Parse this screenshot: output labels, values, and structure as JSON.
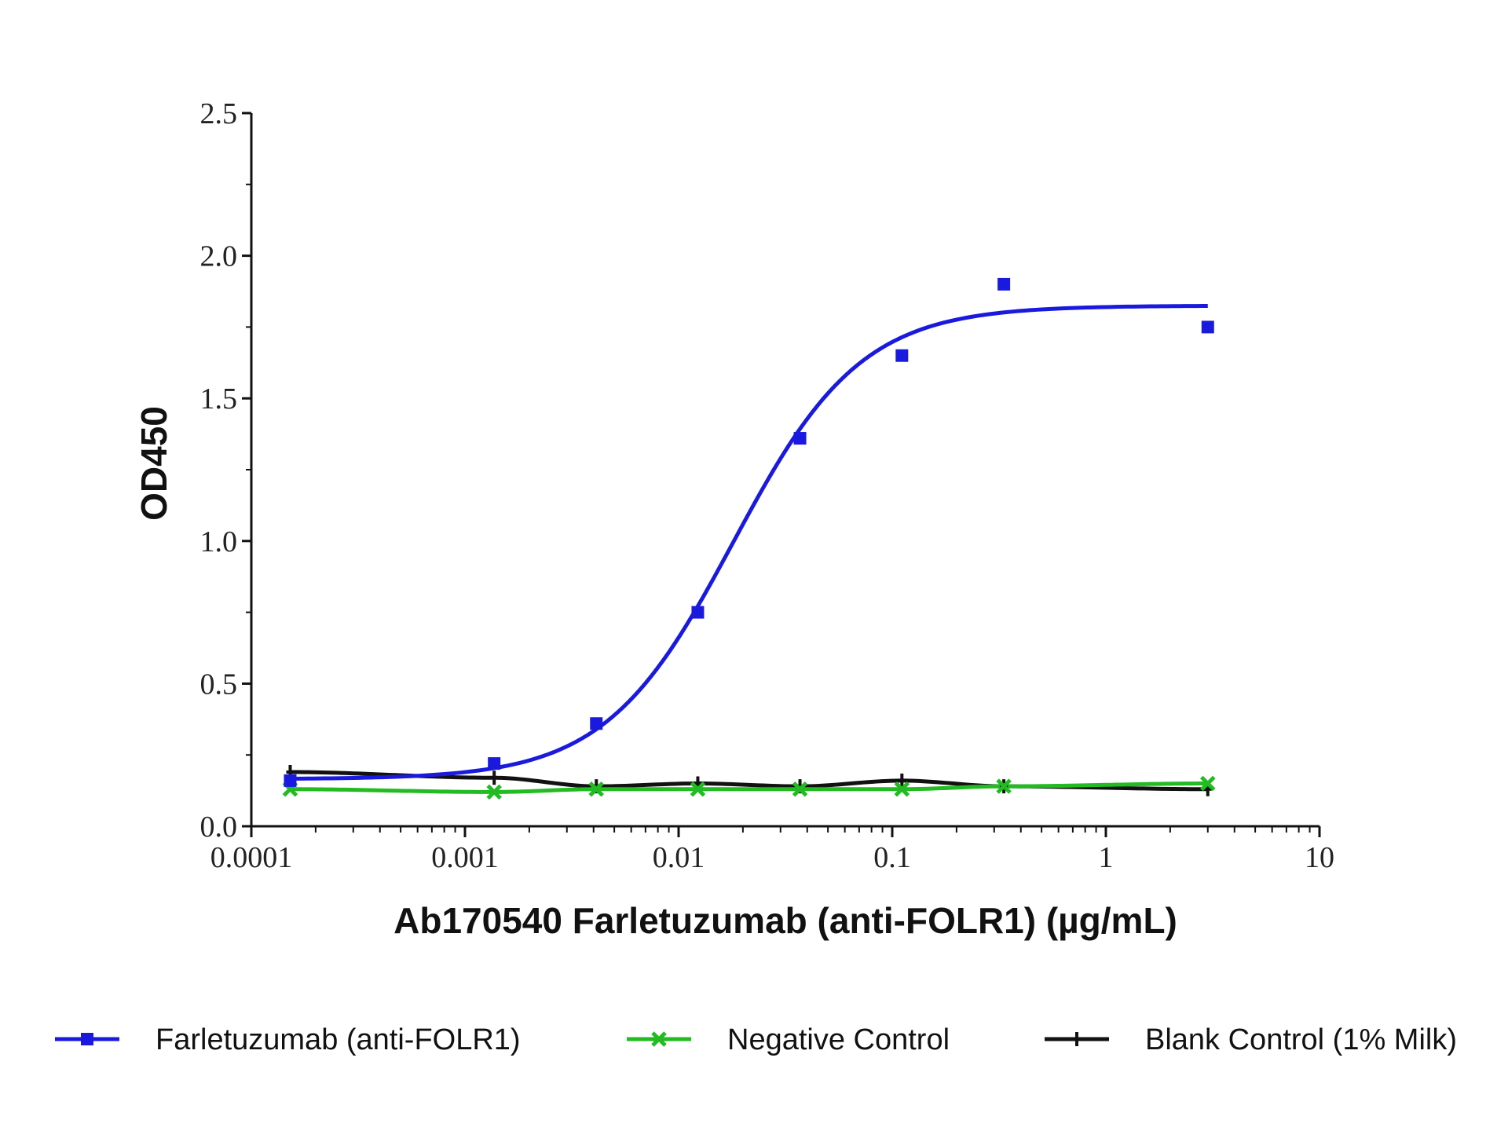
{
  "chart_data": {
    "type": "line",
    "title": "",
    "xlabel": "Ab170540 Farletuzumab (anti-FOLR1) (µg/mL)",
    "ylabel": "OD450",
    "x_scale": "log",
    "xlim": [
      0.0001,
      10
    ],
    "ylim": [
      0,
      2.5
    ],
    "x_tick_labels": [
      "0.0001",
      "0.001",
      "0.01",
      "0.1",
      "1",
      "10"
    ],
    "y_tick_labels": [
      "0.0",
      "0.5",
      "1.0",
      "1.5",
      "2.0",
      "2.5"
    ],
    "grid": false,
    "legend_position": "bottom",
    "series": [
      {
        "name": "Farletuzumab (anti-FOLR1)",
        "color": "#1a1adf",
        "marker": "square",
        "x": [
          0.000152,
          0.00137,
          0.00412,
          0.0123,
          0.037,
          0.111,
          0.333,
          3.0
        ],
        "y": [
          0.16,
          0.22,
          0.36,
          0.75,
          1.36,
          1.65,
          1.9,
          1.75
        ],
        "fit": "4pl"
      },
      {
        "name": "Negative Control",
        "color": "#22bb22",
        "marker": "x",
        "x": [
          0.000152,
          0.00137,
          0.00412,
          0.0123,
          0.037,
          0.111,
          0.333,
          3.0
        ],
        "y": [
          0.13,
          0.12,
          0.13,
          0.13,
          0.13,
          0.13,
          0.14,
          0.15
        ]
      },
      {
        "name": "Blank Control (1% Milk)",
        "color": "#111111",
        "marker": "plus",
        "x": [
          0.000152,
          0.00137,
          0.00412,
          0.0123,
          0.037,
          0.111,
          0.333,
          3.0
        ],
        "y": [
          0.19,
          0.17,
          0.14,
          0.15,
          0.14,
          0.16,
          0.14,
          0.13
        ]
      }
    ]
  }
}
